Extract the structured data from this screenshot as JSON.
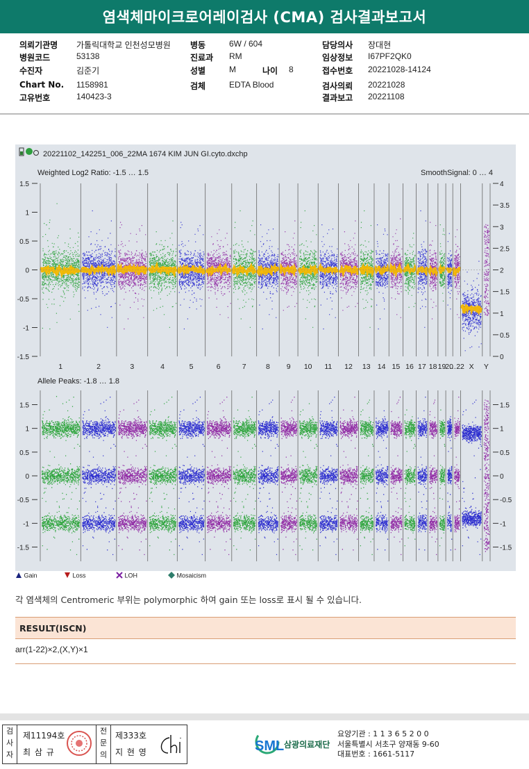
{
  "header": {
    "title": "염색체마이크로어레이검사 (CMA) 검사결과보고서"
  },
  "patient": {
    "rows": [
      [
        {
          "label": "의뢰기관명",
          "value": "가톨릭대학교 인천성모병원"
        },
        {
          "label": "병동",
          "value": "6W / 604"
        },
        {
          "label": "담당의사",
          "value": "장대현"
        }
      ],
      [
        {
          "label": "병원코드",
          "value": "53138"
        },
        {
          "label": "진료과",
          "value": "RM"
        },
        {
          "label": "임상정보",
          "value": "I67PF2QK0"
        }
      ],
      [
        {
          "label": "수진자",
          "value": "김준기"
        },
        {
          "label": "성별",
          "value": "M"
        },
        {
          "label": "접수번호",
          "value": "20221028-14124"
        }
      ],
      [
        {
          "label": "Chart No.",
          "value": "1158981"
        },
        {
          "label": "검체",
          "value": "EDTA Blood"
        },
        {
          "label": "검사의뢰",
          "value": "20221028"
        }
      ],
      [
        {
          "label": "고유번호",
          "value": "140423-3"
        },
        null,
        {
          "label": "결과보고",
          "value": "20221108"
        }
      ]
    ],
    "age_label": "나이",
    "age_value": "8"
  },
  "chart_data": [
    {
      "type": "scatter",
      "title": "Weighted Log2 Ratio: -1.5 … 1.5",
      "right_title": "SmoothSignal: 0 … 4",
      "ylim": [
        -1.5,
        1.5
      ],
      "y_ticks": [
        "1.5",
        "1",
        "0.5",
        "0",
        "-0.5",
        "-1",
        "-1.5"
      ],
      "y2_ticks": [
        "4",
        "3.5",
        "3",
        "2.5",
        "2",
        "1.5",
        "1",
        "0.5",
        "0"
      ],
      "categories": [
        "1",
        "2",
        "3",
        "4",
        "5",
        "6",
        "7",
        "8",
        "9",
        "10",
        "11",
        "12",
        "13",
        "14",
        "15",
        "16",
        "17",
        "18",
        "19",
        "20",
        "…22",
        "X",
        "Y"
      ],
      "series": [
        {
          "name": "log2 ratio autosomes",
          "values": [
            0
          ]
        },
        {
          "name": "log2 ratio X",
          "values": [
            -0.7
          ]
        },
        {
          "name": "SmoothSignal autosomes",
          "values": [
            2
          ]
        },
        {
          "name": "SmoothSignal X",
          "values": [
            1.1
          ]
        }
      ]
    },
    {
      "type": "scatter",
      "title": "Allele Peaks: -1.8 … 1.8",
      "ylim": [
        -1.8,
        1.8
      ],
      "y_ticks": [
        "1.5",
        "1",
        "0.5",
        "0",
        "-0.5",
        "-1",
        "-1.5"
      ],
      "categories": [
        "1",
        "2",
        "3",
        "4",
        "5",
        "6",
        "7",
        "8",
        "9",
        "10",
        "11",
        "12",
        "13",
        "14",
        "15",
        "16",
        "17",
        "18",
        "19",
        "20",
        "…22",
        "X",
        "Y"
      ],
      "series": [
        {
          "name": "autosome peaks",
          "values": [
            1.0,
            0,
            -1.0
          ]
        },
        {
          "name": "X peaks",
          "values": [
            0.9,
            -0.9
          ]
        }
      ]
    }
  ],
  "chart_file": "20221102_142251_006_22MA 1674 KIM JUN GI.cyto.dxchp",
  "legend": [
    {
      "label": "Gain",
      "icon": "triangle-up-icon",
      "color": "#1a237e"
    },
    {
      "label": "Loss",
      "icon": "triangle-down-icon",
      "color": "#b71c1c"
    },
    {
      "label": "LOH",
      "icon": "loh-icon",
      "color": "#7b1fa2"
    },
    {
      "label": "Mosaicism",
      "icon": "diamond-icon",
      "color": "#2e7d6b"
    }
  ],
  "note": "각 염색체의 Centromeric 부위는 polymorphic 하여 gain 또는 loss로 표시 될 수 있습니다.",
  "result": {
    "title": "RESULT(ISCN)",
    "value": "arr(1-22)×2,(X,Y)×1"
  },
  "footer": {
    "examiner": {
      "label": "검사자",
      "number": "제11194호",
      "name": "최 삼 규"
    },
    "specialist": {
      "label": "전문의",
      "number": "제333호",
      "name": "지 현 영"
    },
    "org_name": "삼광의료재단",
    "org_logo": "SML",
    "code": "요양기관 : 1 1 3 6 5 2 0 0",
    "address": "서울특별시 서초구 양재동 9-60",
    "phone": "대표번호 : 1661-5117"
  },
  "colors": {
    "green": "#1e9e2e",
    "blue": "#1c1ccc",
    "purple": "#8a1a9e",
    "orange": "#f5b800",
    "teal": "#0e7a6a"
  }
}
